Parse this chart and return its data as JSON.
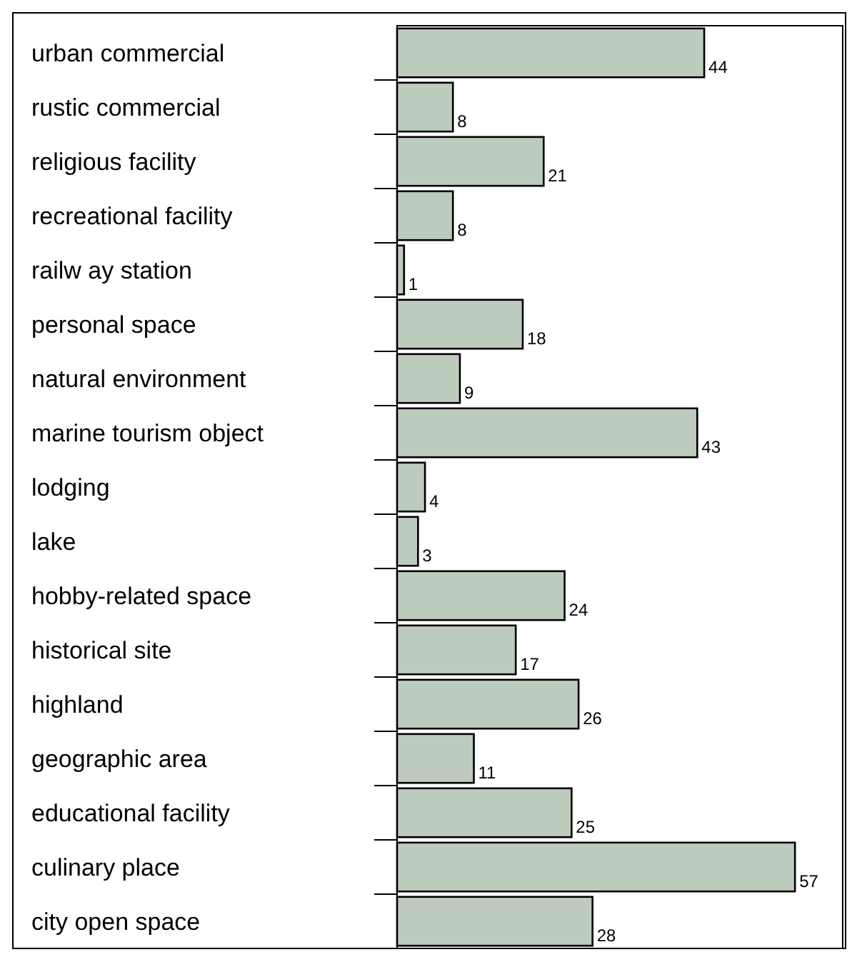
{
  "chart_data": {
    "type": "bar",
    "orientation": "horizontal",
    "categories": [
      "urban commercial",
      "rustic commercial",
      "religious facility",
      "recreational facility",
      "railw ay station",
      "personal space",
      "natural environment",
      "marine tourism object",
      "lodging",
      "lake",
      "hobby-related space",
      "historical site",
      "highland",
      "geographic area",
      "educational facility",
      "culinary place",
      "city open space"
    ],
    "values": [
      44,
      8,
      21,
      8,
      1,
      18,
      9,
      43,
      4,
      3,
      24,
      17,
      26,
      11,
      25,
      57,
      28
    ],
    "color": "#bccbbb",
    "data_labels": true
  }
}
